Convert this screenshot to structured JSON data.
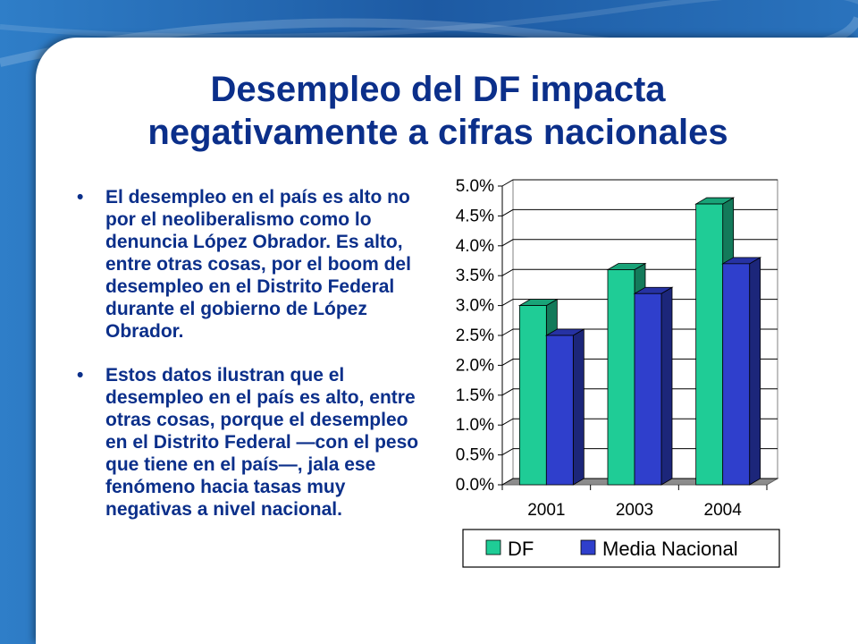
{
  "slide": {
    "title_lines": [
      "Desempleo del DF impacta",
      "negativamente a cifras nacionales"
    ],
    "bullets": [
      "El desempleo en el país es alto no por el neoliberalismo como lo denuncia López Obrador. Es alto, entre otras cosas, por el boom del desempleo en el Distrito Federal durante el gobierno de López Obrador.",
      "Estos datos ilustran que el desempleo en el país es alto, entre otras cosas, porque el desempleo en el Distrito Federal —con el peso que tiene en el país—, jala ese fenómeno hacia tasas muy negativas a nivel nacional."
    ],
    "bullet_symbol": "•",
    "colors": {
      "title": "#0b2f8a",
      "background": "#1f5fa6",
      "panel": "#ffffff"
    }
  },
  "chart_data": {
    "type": "bar",
    "categories": [
      "2001",
      "2003",
      "2004"
    ],
    "series": [
      {
        "name": "DF",
        "values": [
          3.0,
          3.6,
          4.7
        ],
        "color": "#1fcc96"
      },
      {
        "name": "Media Nacional",
        "values": [
          2.5,
          3.2,
          3.7
        ],
        "color": "#2f3fcc"
      }
    ],
    "ylim": [
      0,
      5.0
    ],
    "yticks": [
      "0.0%",
      "0.5%",
      "1.0%",
      "1.5%",
      "2.0%",
      "2.5%",
      "3.0%",
      "3.5%",
      "4.0%",
      "4.5%",
      "5.0%"
    ],
    "grid": true,
    "legend_position": "bottom",
    "style": "3d-clustered-column"
  }
}
